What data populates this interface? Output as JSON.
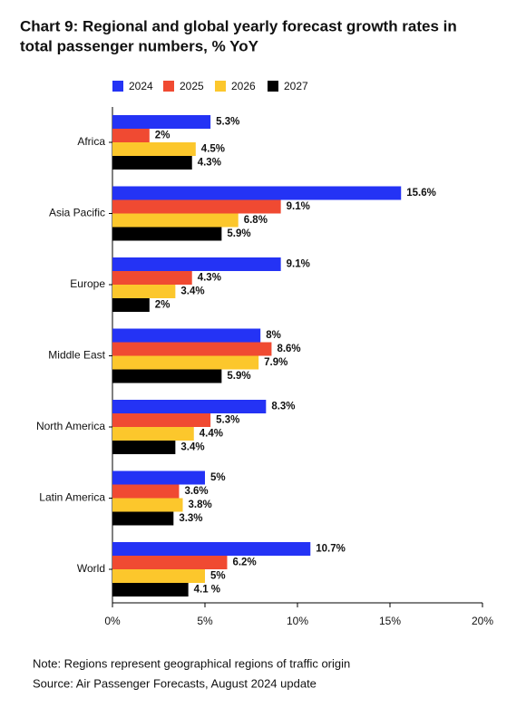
{
  "chart_data": {
    "type": "bar",
    "orientation": "horizontal",
    "title": "Chart 9: Regional and global yearly forecast growth rates in total passenger numbers, % YoY",
    "categories": [
      "Africa",
      "Asia Pacific",
      "Europe",
      "Middle East",
      "North America",
      "Latin America",
      "World"
    ],
    "series": [
      {
        "name": "2024",
        "color": "#2433f5",
        "values": [
          5.3,
          15.6,
          9.1,
          8,
          8.3,
          5,
          10.7
        ],
        "value_labels": [
          "5.3%",
          "15.6%",
          "9.1%",
          "8%",
          "8.3%",
          "5%",
          "10.7%"
        ]
      },
      {
        "name": "2025",
        "color": "#f04a32",
        "values": [
          2,
          9.1,
          4.3,
          8.6,
          5.3,
          3.6,
          6.2
        ],
        "value_labels": [
          "2%",
          "9.1%",
          "4.3%",
          "8.6%",
          "5.3%",
          "3.6%",
          "6.2%"
        ]
      },
      {
        "name": "2026",
        "color": "#fcc72c",
        "values": [
          4.5,
          6.8,
          3.4,
          7.9,
          4.4,
          3.8,
          5
        ],
        "value_labels": [
          "4.5%",
          "6.8%",
          "3.4%",
          "7.9%",
          "4.4%",
          "3.8%",
          "5%"
        ]
      },
      {
        "name": "2027",
        "color": "#000000",
        "values": [
          4.3,
          5.9,
          2,
          5.9,
          3.4,
          3.3,
          4.1
        ],
        "value_labels": [
          "4.3%",
          "5.9%",
          "2%",
          "5.9%",
          "3.4%",
          "3.3%",
          "4.1 %"
        ]
      }
    ],
    "xlim": [
      0,
      20
    ],
    "xticks": [
      {
        "value": 0,
        "label": "0%"
      },
      {
        "value": 5,
        "label": "5%"
      },
      {
        "value": 10,
        "label": "10%"
      },
      {
        "value": 15,
        "label": "15%"
      },
      {
        "value": 20,
        "label": "20%"
      }
    ],
    "notes": [
      "Note: Regions represent geographical regions of traffic origin",
      "Source: Air Passenger Forecasts, August 2024 update"
    ]
  }
}
